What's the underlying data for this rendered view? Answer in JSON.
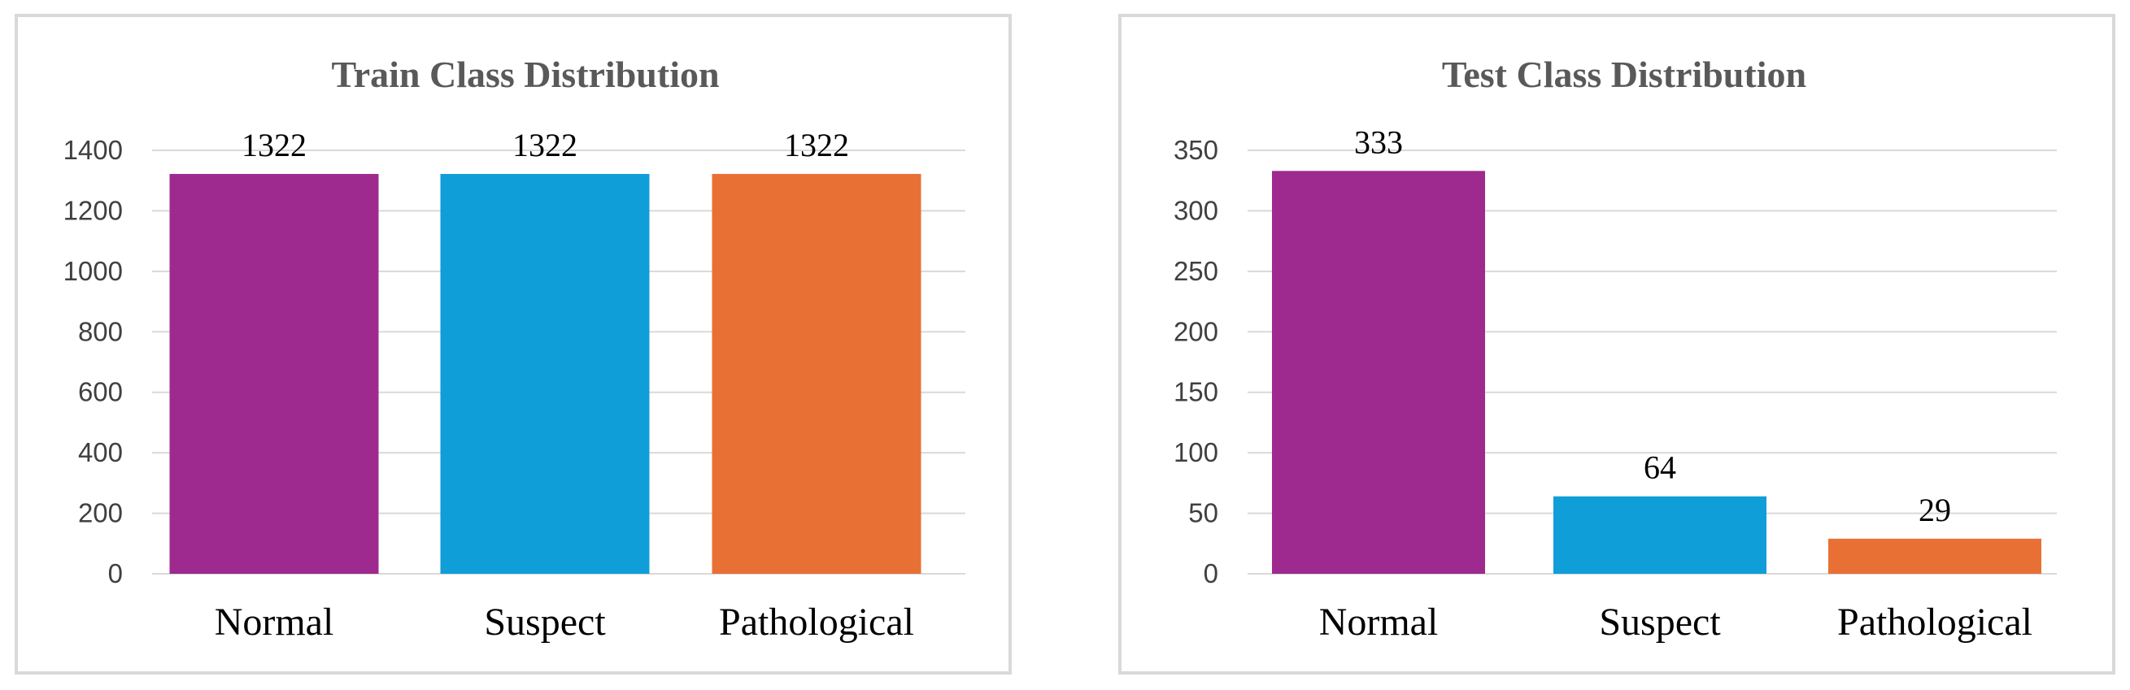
{
  "chart_data": [
    {
      "type": "bar",
      "title": "Train  Class Distribution",
      "categories": [
        "Normal",
        "Suspect",
        "Pathological"
      ],
      "values": [
        1322,
        1322,
        1322
      ],
      "ylim": [
        0,
        1400
      ],
      "yticks": [
        0,
        200,
        400,
        600,
        800,
        1000,
        1200,
        1400
      ],
      "colors": [
        "#9e2a8f",
        "#109ed8",
        "#e87035"
      ],
      "grid": true,
      "xlabel": "",
      "ylabel": ""
    },
    {
      "type": "bar",
      "title": "Test Class Distribution",
      "categories": [
        "Normal",
        "Suspect",
        "Pathological"
      ],
      "values": [
        333,
        64,
        29
      ],
      "ylim": [
        0,
        350
      ],
      "yticks": [
        0,
        50,
        100,
        150,
        200,
        250,
        300,
        350
      ],
      "colors": [
        "#9e2a8f",
        "#109ed8",
        "#e87035"
      ],
      "grid": true,
      "xlabel": "",
      "ylabel": ""
    }
  ]
}
